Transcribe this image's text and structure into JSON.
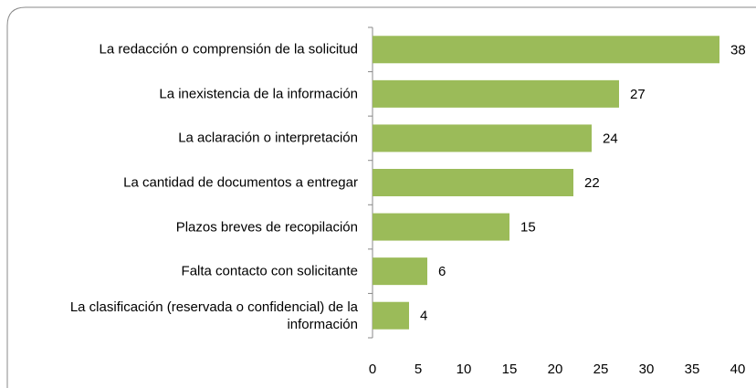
{
  "chart_data": {
    "type": "bar",
    "orientation": "horizontal",
    "categories": [
      "La redacción o comprensión de la solicitud",
      "La inexistencia de la información",
      "La aclaración o interpretación",
      "La cantidad de documentos a entregar",
      "Plazos breves de recopilación",
      "Falta contacto con solicitante",
      "La clasificación (reservada o confidencial) de la información"
    ],
    "values": [
      38,
      27,
      24,
      22,
      15,
      6,
      4
    ],
    "color": "#9bbb59",
    "xlim": [
      0,
      40
    ],
    "xticks": [
      0,
      5,
      10,
      15,
      20,
      25,
      30,
      35,
      40
    ],
    "grid": false
  }
}
